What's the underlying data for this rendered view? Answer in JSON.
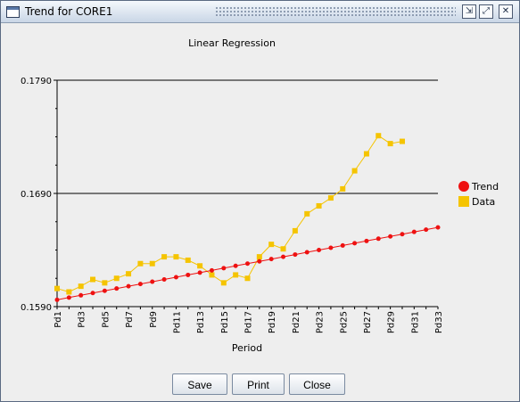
{
  "window": {
    "title": "Trend for CORE1",
    "controls": {
      "minimize": "⇲",
      "maximize": "⤢",
      "close": "✕"
    }
  },
  "buttons": {
    "save": "Save",
    "print": "Print",
    "close": "Close"
  },
  "chart_data": {
    "type": "line",
    "title": "Linear Regression",
    "xlabel": "Period",
    "ylabel": "",
    "ylim": [
      0.159,
      0.179
    ],
    "yticks": [
      "0.1790",
      "0.1690",
      "0.1590"
    ],
    "ytick_values": [
      0.179,
      0.169,
      0.159
    ],
    "gridlines": [
      0.179,
      0.169
    ],
    "x_tick_labels": [
      "Pd1",
      "Pd3",
      "Pd5",
      "Pd7",
      "Pd9",
      "Pd11",
      "Pd13",
      "Pd15",
      "Pd17",
      "Pd19",
      "Pd21",
      "Pd23",
      "Pd25",
      "Pd27",
      "Pd29",
      "Pd31",
      "Pd33"
    ],
    "legend_position": "right",
    "series": [
      {
        "name": "Trend",
        "color": "#ee1111",
        "marker": "circle",
        "values": [
          0.1596,
          0.1598,
          0.16,
          0.1602,
          0.1604,
          0.1606,
          0.1608,
          0.161,
          0.1612,
          0.1614,
          0.1616,
          0.1618,
          0.162,
          0.1622,
          0.1624,
          0.1626,
          0.1628,
          0.163,
          0.1632,
          0.1634,
          0.1636,
          0.1638,
          0.164,
          0.1642,
          0.1644,
          0.1646,
          0.1648,
          0.165,
          0.1652,
          0.1654,
          0.1656,
          0.1658,
          0.166
        ]
      },
      {
        "name": "Data",
        "color": "#f5c400",
        "marker": "square",
        "values": [
          0.1606,
          0.1603,
          0.1608,
          0.1614,
          0.1611,
          0.1615,
          0.1619,
          0.1628,
          0.1628,
          0.1634,
          0.1634,
          0.1631,
          0.1626,
          0.1618,
          0.1611,
          0.1618,
          0.1615,
          0.1634,
          0.1645,
          0.1641,
          0.1657,
          0.1672,
          0.1679,
          0.1686,
          0.1694,
          0.171,
          0.1725,
          0.1741,
          0.1734,
          0.1736
        ]
      }
    ]
  }
}
